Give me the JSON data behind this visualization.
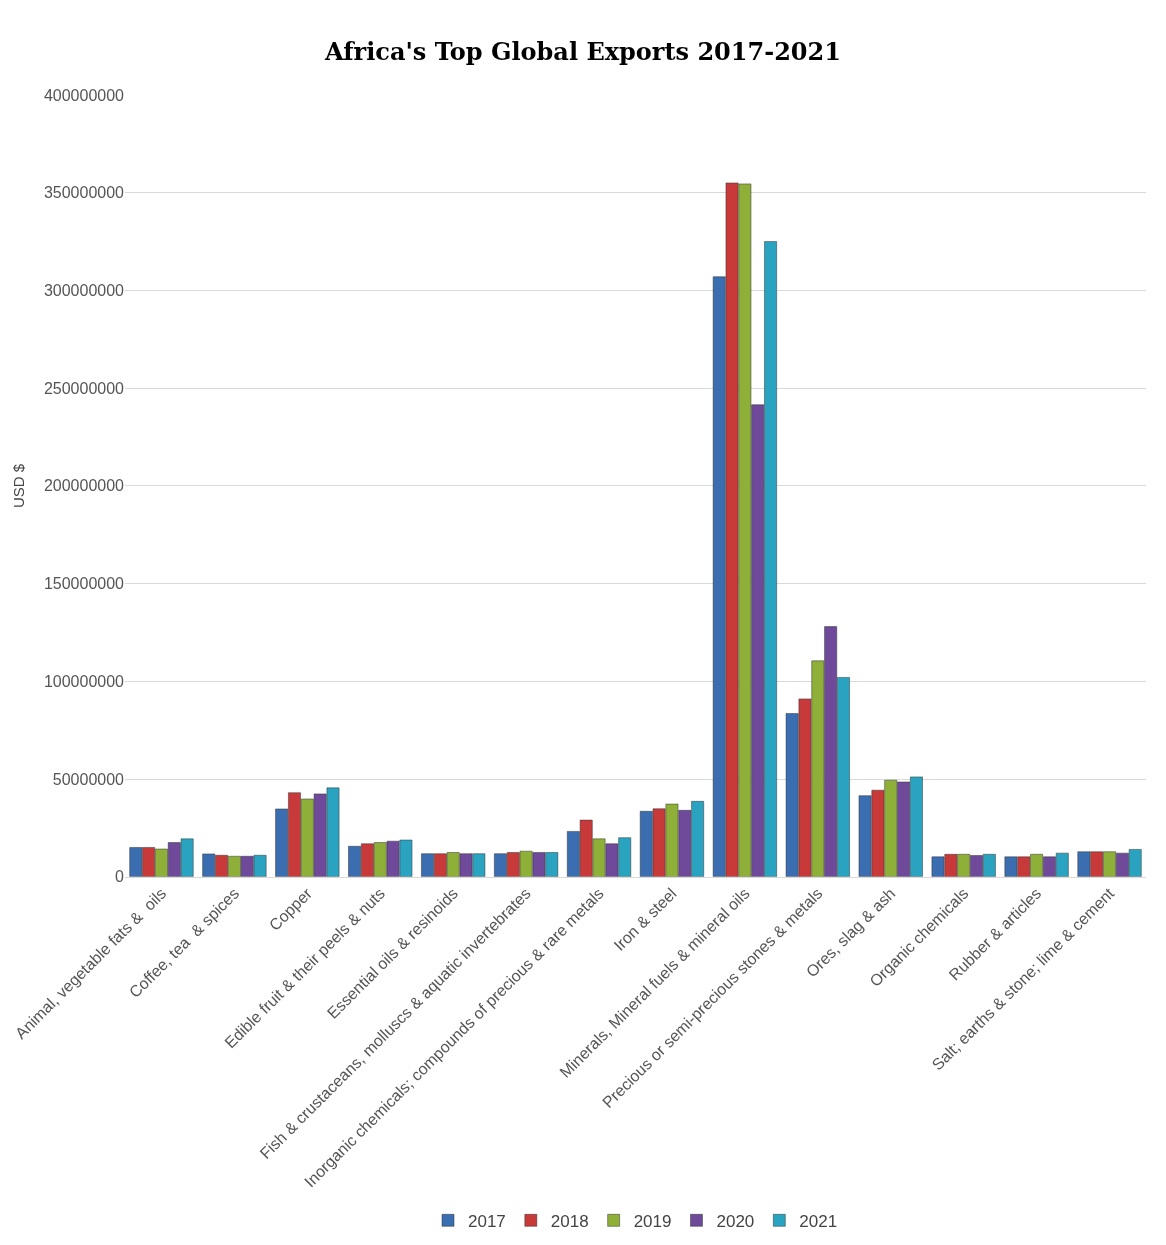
{
  "chart_data": {
    "type": "bar",
    "title": "Africa's Top Global Exports 2017-2021",
    "ylabel": "USD $",
    "categories": [
      "Animal, vegetable fats &  oils",
      "Coffee, tea  & spices",
      "Copper",
      "Edible fruit & their peels & nuts",
      "Essential oils & resinoids",
      "Fish & crustaceans, molluscs & aquatic invertebrates",
      "Inorganic chemicals; compounds of precious & rare metals",
      "Iron & steel",
      "Minerals, Mineral fuels & mineral oils",
      "Precious or semi-precious stones & metals",
      "Ores, slag & ash",
      "Organic chemicals",
      "Rubber & articles",
      "Salt; earths & stone; lime & cement"
    ],
    "series": [
      {
        "name": "2017",
        "color": "#3a6eb0",
        "values": [
          15000000,
          11700000,
          34700000,
          15600000,
          11800000,
          11800000,
          23200000,
          33500000,
          307000000,
          83500000,
          41500000,
          10200000,
          10200000,
          12800000
        ]
      },
      {
        "name": "2018",
        "color": "#c83a3a",
        "values": [
          15000000,
          11000000,
          43000000,
          16900000,
          11800000,
          12400000,
          29000000,
          34800000,
          355000000,
          91000000,
          44300000,
          11500000,
          10200000,
          12800000
        ]
      },
      {
        "name": "2019",
        "color": "#8fb038",
        "values": [
          14200000,
          10500000,
          39800000,
          17500000,
          12400000,
          13100000,
          19400000,
          37200000,
          354500000,
          110500000,
          49400000,
          11500000,
          11500000,
          12800000
        ]
      },
      {
        "name": "2020",
        "color": "#6f4a9a",
        "values": [
          17500000,
          10500000,
          42400000,
          18200000,
          11800000,
          12400000,
          16900000,
          34000000,
          241500000,
          128000000,
          48500000,
          10900000,
          10200000,
          12100000
        ]
      },
      {
        "name": "2021",
        "color": "#2aa3c0",
        "values": [
          19400000,
          11000000,
          45500000,
          18800000,
          11800000,
          12400000,
          20000000,
          38600000,
          325000000,
          102000000,
          51100000,
          11500000,
          12100000,
          14000000
        ]
      }
    ],
    "ylim": [
      0,
      400000000
    ],
    "yticks": [
      0,
      50000000,
      100000000,
      150000000,
      200000000,
      250000000,
      300000000,
      350000000,
      400000000
    ],
    "grid": "y",
    "legend": "bottom"
  }
}
